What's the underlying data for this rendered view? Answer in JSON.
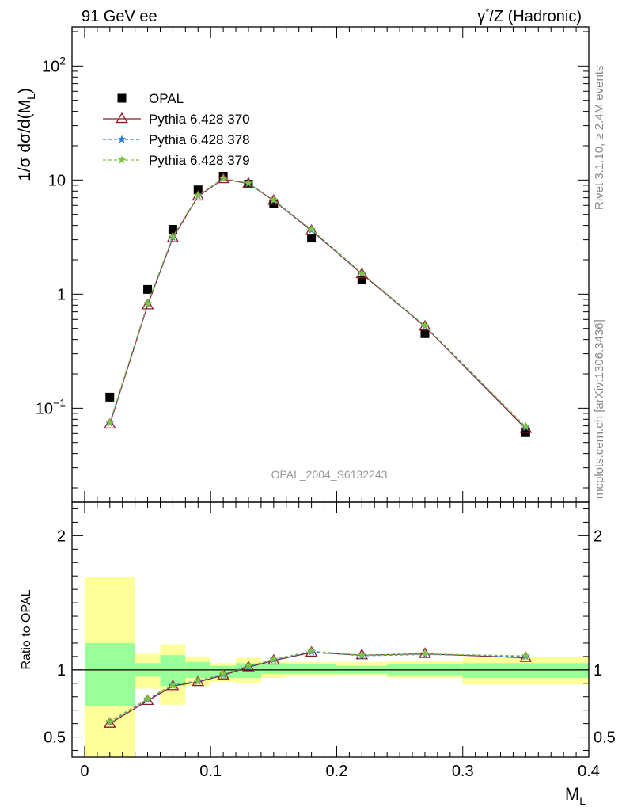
{
  "header": {
    "left": "91 GeV ee",
    "right_prefix": "γ",
    "right_sup": "*",
    "right_suffix": "/Z (Hadronic)"
  },
  "side_labels": {
    "rivet": "Rivet 3.1.10, ≥ 2.4M events",
    "mcplots": "mcplots.cern.ch [arXiv:1306.3436]"
  },
  "watermark": "OPAL_2004_S6132243",
  "chart_data": [
    {
      "panel": "main",
      "type": "scatter",
      "ylabel_main": "1/σ dσ/d(M",
      "ylabel_sub": "L",
      "ylabel_close": ")",
      "ylog": true,
      "ylim": [
        0.015,
        220
      ],
      "xlim": [
        -0.01,
        0.4
      ],
      "yticks_major": [
        {
          "value": 100,
          "base": "10",
          "exp": "2"
        },
        {
          "value": 10,
          "base": "10",
          "exp": ""
        },
        {
          "value": 1,
          "base": "1",
          "exp": ""
        },
        {
          "value": 0.1,
          "base": "10",
          "exp": "−1"
        }
      ],
      "legend_position": "top-left",
      "series": [
        {
          "name": "OPAL",
          "marker": "square",
          "color": "#000000",
          "x": [
            0.02,
            0.05,
            0.07,
            0.09,
            0.11,
            0.13,
            0.15,
            0.18,
            0.22,
            0.27,
            0.35
          ],
          "y": [
            0.125,
            1.1,
            3.7,
            8.2,
            10.8,
            9.2,
            6.2,
            3.1,
            1.33,
            0.45,
            0.061
          ]
        },
        {
          "name": "Pythia 6.428 370",
          "marker": "triangle-open",
          "line": "solid",
          "color": "#8b1a2b",
          "x": [
            0.02,
            0.05,
            0.07,
            0.09,
            0.11,
            0.13,
            0.15,
            0.18,
            0.22,
            0.27,
            0.35
          ],
          "y": [
            0.072,
            0.8,
            3.1,
            7.2,
            10.2,
            9.3,
            6.6,
            3.6,
            1.5,
            0.52,
            0.066
          ]
        },
        {
          "name": "Pythia 6.428 378",
          "marker": "star",
          "line": "dashed",
          "color": "#2a7fd4",
          "x": [
            0.02,
            0.05,
            0.07,
            0.09,
            0.11,
            0.13,
            0.15,
            0.18,
            0.22,
            0.27,
            0.35
          ],
          "y": [
            0.074,
            0.82,
            3.15,
            7.3,
            10.3,
            9.35,
            6.65,
            3.65,
            1.52,
            0.525,
            0.068
          ]
        },
        {
          "name": "Pythia 6.428 379",
          "marker": "star",
          "line": "dashed",
          "color": "#7dc242",
          "x": [
            0.02,
            0.05,
            0.07,
            0.09,
            0.11,
            0.13,
            0.15,
            0.18,
            0.22,
            0.27,
            0.35
          ],
          "y": [
            0.075,
            0.83,
            3.2,
            7.35,
            10.35,
            9.4,
            6.7,
            3.7,
            1.53,
            0.53,
            0.069
          ]
        }
      ]
    },
    {
      "panel": "ratio",
      "type": "line",
      "ylabel": "Ratio to OPAL",
      "xlabel_main": "M",
      "xlabel_sub": "L",
      "ylim": [
        0.35,
        2.25
      ],
      "xlim": [
        -0.01,
        0.4
      ],
      "yticks": [
        {
          "value": 0.5,
          "label": "0.5"
        },
        {
          "value": 1,
          "label": "1"
        },
        {
          "value": 2,
          "label": "2"
        }
      ],
      "xticks": [
        {
          "value": 0,
          "label": "0"
        },
        {
          "value": 0.1,
          "label": "0.1"
        },
        {
          "value": 0.2,
          "label": "0.2"
        },
        {
          "value": 0.3,
          "label": "0.3"
        },
        {
          "value": 0.4,
          "label": "0.4"
        }
      ],
      "bands": {
        "edges": [
          0.0,
          0.04,
          0.06,
          0.08,
          0.1,
          0.12,
          0.14,
          0.16,
          0.2,
          0.24,
          0.3,
          0.4
        ],
        "total_lo": [
          0.35,
          0.86,
          0.74,
          0.88,
          0.91,
          0.9,
          0.94,
          0.95,
          0.96,
          0.94,
          0.89
        ],
        "total_hi": [
          1.69,
          1.12,
          1.19,
          1.1,
          1.05,
          1.09,
          1.07,
          1.06,
          1.06,
          1.07,
          1.1
        ],
        "stat_lo": [
          0.73,
          0.95,
          0.88,
          0.94,
          0.94,
          0.94,
          0.97,
          0.97,
          0.97,
          0.96,
          0.94
        ],
        "stat_hi": [
          1.2,
          1.05,
          1.11,
          1.06,
          1.03,
          1.05,
          1.05,
          1.04,
          1.03,
          1.04,
          1.05
        ]
      },
      "series": [
        {
          "name": "Pythia 6.428 370",
          "marker": "triangle-open",
          "line": "solid",
          "color": "#8b1a2b",
          "x": [
            0.02,
            0.05,
            0.07,
            0.09,
            0.11,
            0.13,
            0.15,
            0.18,
            0.22,
            0.27,
            0.35
          ],
          "y": [
            0.6,
            0.77,
            0.88,
            0.91,
            0.96,
            1.02,
            1.07,
            1.13,
            1.11,
            1.12,
            1.09
          ]
        },
        {
          "name": "Pythia 6.428 378",
          "marker": "star",
          "line": "dashed",
          "color": "#2a7fd4",
          "x": [
            0.02,
            0.05,
            0.07,
            0.09,
            0.11,
            0.13,
            0.15,
            0.18,
            0.22,
            0.27,
            0.35
          ],
          "y": [
            0.61,
            0.78,
            0.885,
            0.915,
            0.965,
            1.025,
            1.075,
            1.135,
            1.105,
            1.115,
            1.1
          ]
        },
        {
          "name": "Pythia 6.428 379",
          "marker": "star",
          "line": "dashed",
          "color": "#7dc242",
          "x": [
            0.02,
            0.05,
            0.07,
            0.09,
            0.11,
            0.13,
            0.15,
            0.18,
            0.22,
            0.27,
            0.35
          ],
          "y": [
            0.615,
            0.785,
            0.89,
            0.92,
            0.97,
            1.03,
            1.08,
            1.14,
            1.11,
            1.12,
            1.105
          ]
        }
      ]
    }
  ]
}
